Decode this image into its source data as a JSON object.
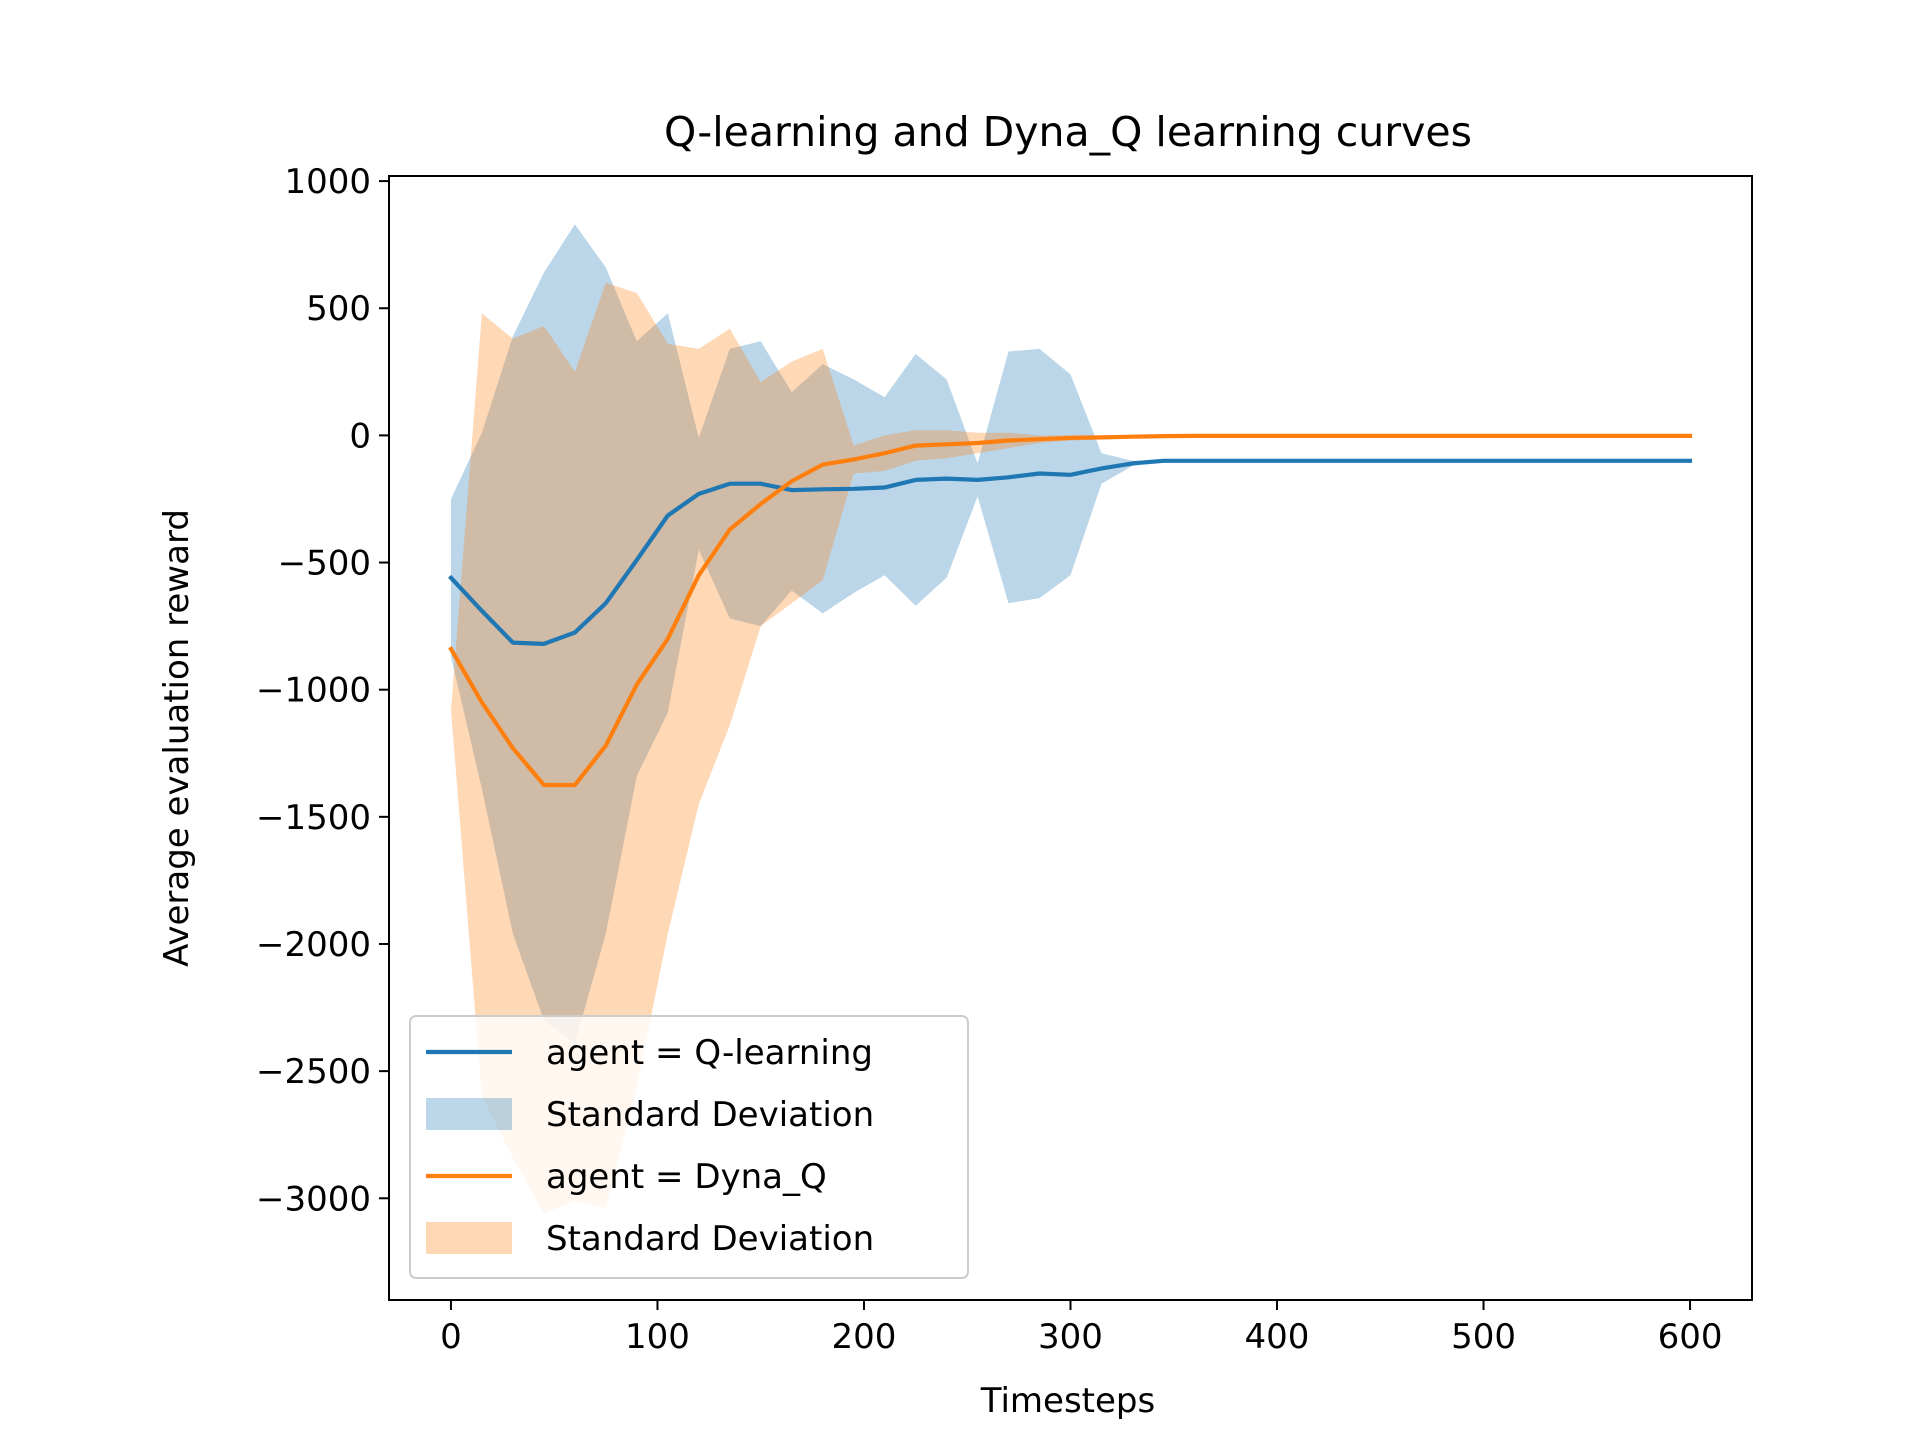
{
  "chart_data": {
    "type": "line",
    "title": "Q-learning and Dyna_Q learning curves",
    "xlabel": "Timesteps",
    "ylabel": "Average evaluation reward",
    "xlim": [
      -30,
      630
    ],
    "ylim": [
      -3400,
      1020
    ],
    "xticks": [
      0,
      100,
      200,
      300,
      400,
      500,
      600
    ],
    "yticks": [
      1000,
      500,
      0,
      -500,
      -1000,
      -1500,
      -2000,
      -2500,
      -3000
    ],
    "xtick_labels": [
      "0",
      "100",
      "200",
      "300",
      "400",
      "500",
      "600"
    ],
    "ytick_labels": [
      "1000",
      "500",
      "0",
      "−500",
      "−1000",
      "−1500",
      "−2000",
      "−2500",
      "−3000"
    ],
    "grid": false,
    "legend_position": "lower-left",
    "x": [
      0,
      15,
      30,
      45,
      60,
      75,
      90,
      105,
      120,
      135,
      150,
      165,
      180,
      195,
      210,
      225,
      240,
      255,
      270,
      285,
      300,
      315,
      330,
      345,
      360,
      375,
      390,
      405,
      420,
      435,
      450,
      465,
      480,
      495,
      510,
      525,
      540,
      555,
      570,
      585,
      600
    ],
    "series": [
      {
        "name": "agent = Q-learning",
        "color": "#1f77b4",
        "band_label": "Standard Deviation",
        "band_color": "#1f77b4",
        "band_opacity": 0.3,
        "values": [
          -560,
          -690,
          -815,
          -820,
          -775,
          -660,
          -490,
          -315,
          -230,
          -190,
          -190,
          -215,
          -212,
          -210,
          -205,
          -175,
          -170,
          -175,
          -165,
          -150,
          -155,
          -130,
          -110,
          -100,
          -100,
          -100,
          -100,
          -100,
          -100,
          -100,
          -100,
          -100,
          -100,
          -100,
          -100,
          -100,
          -100,
          -100,
          -100,
          -100,
          -100
        ],
        "upper": [
          -250,
          10,
          390,
          640,
          830,
          660,
          370,
          480,
          -10,
          340,
          370,
          170,
          280,
          220,
          150,
          320,
          220,
          -110,
          330,
          340,
          240,
          -70,
          -100,
          -100,
          -100,
          -100,
          -100,
          -100,
          -100,
          -100,
          -100,
          -100,
          -100,
          -100,
          -100,
          -100,
          -100,
          -100,
          -100,
          -100,
          -100
        ],
        "lower": [
          -870,
          -1390,
          -1960,
          -2300,
          -2390,
          -1960,
          -1340,
          -1090,
          -450,
          -720,
          -750,
          -610,
          -700,
          -620,
          -550,
          -670,
          -560,
          -240,
          -660,
          -640,
          -550,
          -190,
          -120,
          -100,
          -100,
          -100,
          -100,
          -100,
          -100,
          -100,
          -100,
          -100,
          -100,
          -100,
          -100,
          -100,
          -100,
          -100,
          -100,
          -100,
          -100
        ]
      },
      {
        "name": "agent = Dyna_Q",
        "color": "#ff7f0e",
        "band_label": "Standard Deviation",
        "band_color": "#ff7f0e",
        "band_opacity": 0.3,
        "values": [
          -840,
          -1050,
          -1230,
          -1375,
          -1375,
          -1220,
          -980,
          -800,
          -550,
          -370,
          -270,
          -180,
          -115,
          -95,
          -70,
          -40,
          -35,
          -30,
          -20,
          -15,
          -10,
          -8,
          -5,
          -3,
          -2,
          -2,
          -2,
          -2,
          -2,
          -2,
          -2,
          -2,
          -2,
          -2,
          -2,
          -2,
          -2,
          -2,
          -2,
          -2,
          -2
        ],
        "upper": [
          -1080,
          480,
          380,
          430,
          250,
          600,
          560,
          360,
          340,
          420,
          210,
          290,
          340,
          -40,
          0,
          20,
          20,
          10,
          10,
          0,
          0,
          0,
          0,
          0,
          0,
          0,
          0,
          0,
          0,
          0,
          0,
          0,
          0,
          0,
          0,
          0,
          0,
          0,
          0,
          0,
          0
        ],
        "lower": [
          -1080,
          -2600,
          -2840,
          -3060,
          -3010,
          -3040,
          -2560,
          -1960,
          -1450,
          -1140,
          -750,
          -660,
          -570,
          -150,
          -140,
          -100,
          -90,
          -70,
          -50,
          -30,
          -20,
          -16,
          -10,
          -6,
          -4,
          -4,
          -4,
          -4,
          -4,
          -4,
          -4,
          -4,
          -4,
          -4,
          -4,
          -4,
          -4,
          -4,
          -4,
          -4,
          -4
        ]
      }
    ]
  }
}
